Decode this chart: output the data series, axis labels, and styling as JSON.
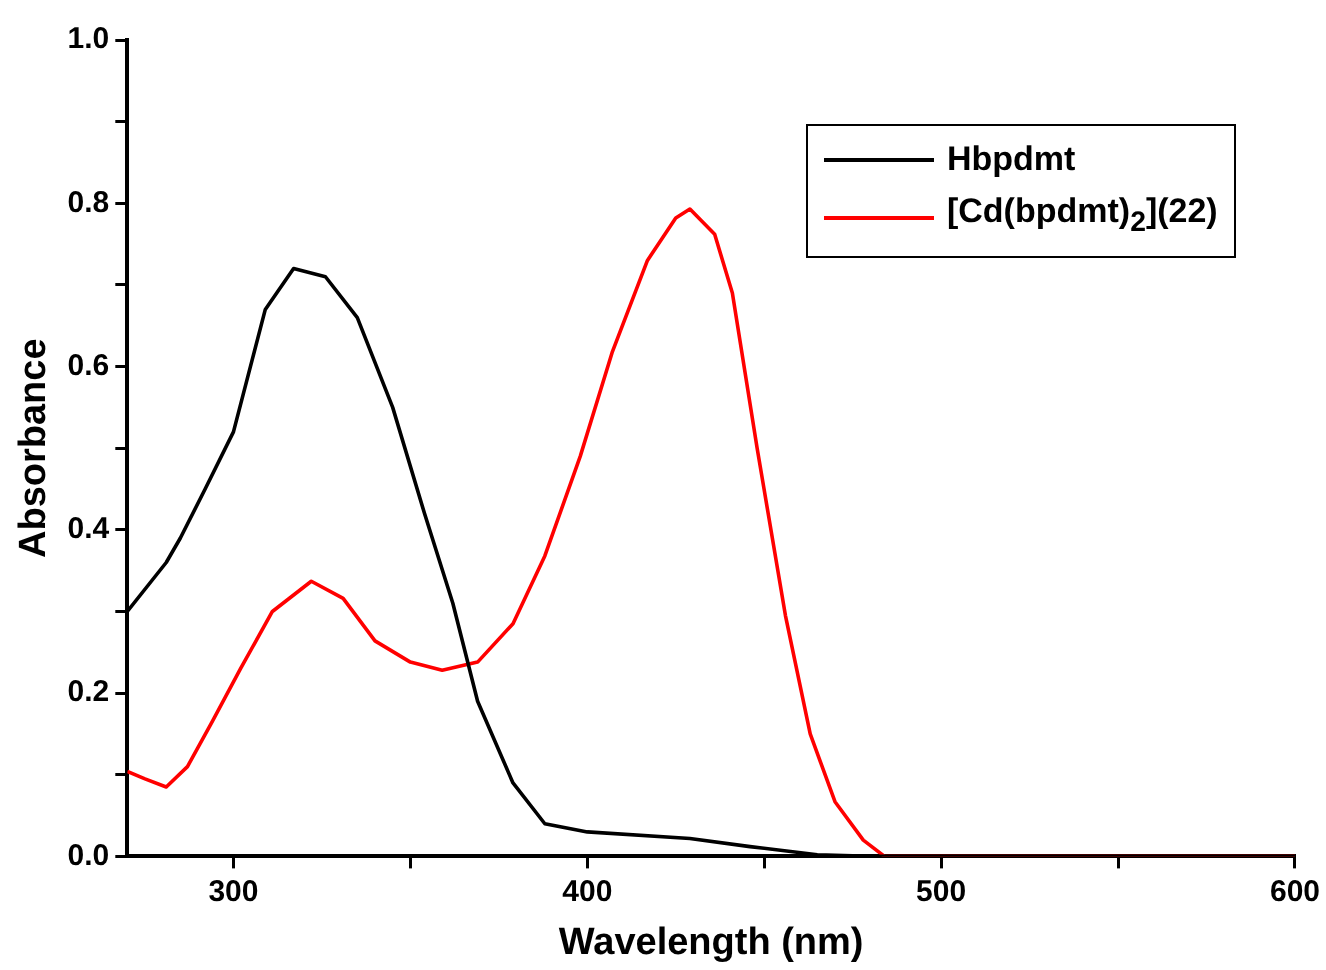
{
  "chart_data": {
    "type": "line",
    "xlabel": "Wavelength (nm)",
    "ylabel": "Absorbance",
    "xlim": [
      270,
      600
    ],
    "ylim": [
      0,
      1.0
    ],
    "xticks": [
      300,
      {
        "value": 350,
        "label": null
      },
      400,
      {
        "value": 450,
        "label": null
      },
      500,
      {
        "value": 550,
        "label": null
      },
      600
    ],
    "yticks": [
      {
        "value": 0,
        "label": "0.0"
      },
      {
        "value": 0.1,
        "label": null
      },
      0.2,
      {
        "value": 0.3,
        "label": null
      },
      0.4,
      {
        "value": 0.5,
        "label": null
      },
      0.6,
      {
        "value": 0.7,
        "label": null
      },
      0.8,
      {
        "value": 0.9,
        "label": null
      },
      {
        "value": 1.0,
        "label": "1.0"
      }
    ],
    "grid": false,
    "legend": "top right",
    "marker": "none",
    "line_style": "solid",
    "series": [
      {
        "name": "Hbpdmt",
        "color": "#000000",
        "x": [
          270,
          281,
          285,
          292,
          300,
          309,
          317,
          326,
          335,
          345,
          354,
          362,
          369,
          379,
          388,
          400,
          429,
          446,
          465,
          480,
          600
        ],
        "values": [
          0.3,
          0.36,
          0.39,
          0.45,
          0.52,
          0.67,
          0.72,
          0.71,
          0.66,
          0.55,
          0.42,
          0.31,
          0.19,
          0.09,
          0.04,
          0.03,
          0.022,
          0.012,
          0.002,
          0,
          0
        ]
      },
      {
        "name": "[Cd(bpdmt)$_{2}$](22)",
        "color": "#ff0000",
        "x": [
          270,
          275,
          281,
          287,
          294,
          302,
          311,
          322,
          331,
          340,
          350,
          359,
          369,
          379,
          388,
          398,
          407,
          417,
          425,
          429,
          436,
          441,
          448,
          456,
          463,
          470,
          478,
          484,
          600
        ],
        "values": [
          0.104,
          0.095,
          0.085,
          0.11,
          0.165,
          0.23,
          0.3,
          0.337,
          0.316,
          0.264,
          0.238,
          0.228,
          0.238,
          0.285,
          0.368,
          0.49,
          0.617,
          0.73,
          0.782,
          0.793,
          0.762,
          0.69,
          0.5,
          0.295,
          0.15,
          0.067,
          0.02,
          0,
          0
        ]
      }
    ]
  }
}
